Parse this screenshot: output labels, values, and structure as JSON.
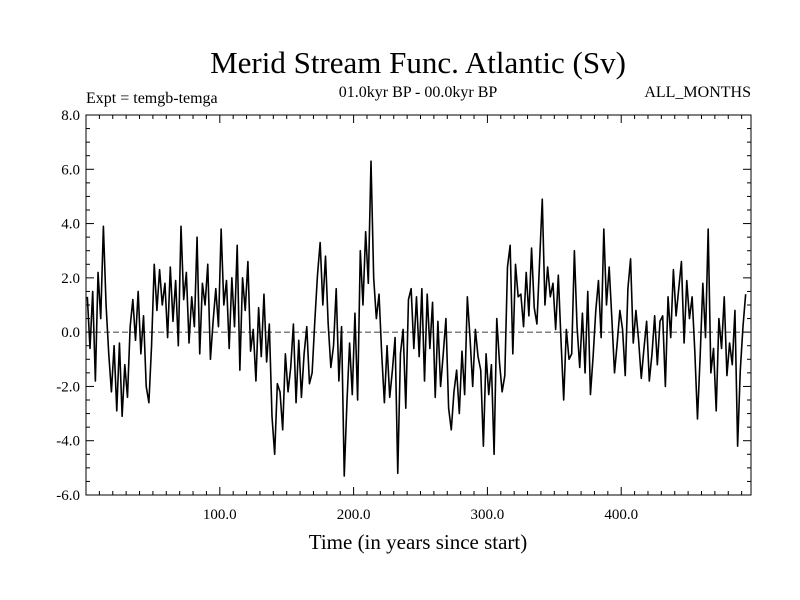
{
  "chart_data": {
    "type": "line",
    "title": "Merid Stream Func. Atlantic (Sv)",
    "subtitle": "01.0kyr BP - 00.0kyr BP",
    "left_label": "Expt = temgb-temga",
    "right_label": "ALL_MONTHS",
    "xlabel": "Time (in years since start)",
    "ylabel": "",
    "xlim": [
      0,
      497
    ],
    "ylim": [
      -6.0,
      8.0
    ],
    "xticks": [
      100,
      200,
      300,
      400
    ],
    "xtick_labels": [
      "100.0",
      "200.0",
      "300.0",
      "400.0"
    ],
    "yticks": [
      -6,
      -4,
      -2,
      0,
      2,
      4,
      6,
      8
    ],
    "ytick_labels": [
      "-6.0",
      "-4.0",
      "-2.0",
      "0.0",
      "2.0",
      "4.0",
      "6.0",
      "8.0"
    ],
    "zero_line": 0.0,
    "series": [
      {
        "name": "Merid Stream Func. Atlantic",
        "x_start": 1,
        "x_step": 2,
        "values": [
          1.3,
          -0.6,
          1.5,
          -1.8,
          2.2,
          0.5,
          3.9,
          1.0,
          -0.8,
          -2.2,
          -0.5,
          -2.9,
          -0.4,
          -3.1,
          -1.2,
          -2.4,
          0.2,
          1.2,
          -0.3,
          1.5,
          -0.8,
          0.6,
          -2.0,
          -2.6,
          -0.5,
          2.5,
          0.8,
          2.3,
          1.0,
          1.8,
          -0.2,
          2.4,
          0.4,
          1.9,
          -0.5,
          3.9,
          1.2,
          2.2,
          -0.4,
          1.3,
          0.2,
          3.5,
          -0.8,
          1.8,
          1.0,
          2.5,
          -1.0,
          0.4,
          1.6,
          0.2,
          3.8,
          1.0,
          1.9,
          -0.6,
          2.0,
          0.2,
          3.2,
          -1.4,
          2.0,
          0.8,
          2.6,
          -0.7,
          0.1,
          -1.8,
          0.9,
          -0.9,
          1.4,
          -1.1,
          0.3,
          -3.1,
          -4.5,
          -1.9,
          -2.2,
          -3.6,
          -0.8,
          -2.2,
          -1.3,
          0.3,
          -2.6,
          -0.3,
          -2.4,
          -0.8,
          0.2,
          -1.9,
          -1.5,
          0.4,
          2.1,
          3.3,
          1.0,
          2.8,
          0.3,
          -1.3,
          -0.5,
          1.6,
          -1.8,
          0.2,
          -5.3,
          -2.6,
          -0.4,
          -2.3,
          0.7,
          -2.5,
          3.0,
          1.0,
          3.7,
          1.8,
          6.3,
          2.0,
          0.5,
          1.4,
          -0.8,
          -2.6,
          -0.5,
          -2.4,
          -1.4,
          -0.2,
          -5.2,
          -0.8,
          0.1,
          -2.8,
          1.2,
          1.6,
          -0.6,
          1.3,
          -0.9,
          1.6,
          -1.8,
          1.4,
          -0.6,
          1.1,
          -2.4,
          0.4,
          -2.0,
          -0.8,
          0.5,
          -2.8,
          -3.6,
          -2.2,
          -1.4,
          -3.0,
          -0.7,
          -2.3,
          1.3,
          -0.2,
          -2.0,
          0.1,
          -0.9,
          -1.4,
          -4.2,
          -0.8,
          -2.3,
          -1.2,
          -4.5,
          0.5,
          -1.1,
          -2.2,
          -1.6,
          2.4,
          3.2,
          -0.8,
          2.5,
          1.3,
          1.4,
          0.2,
          2.2,
          0.6,
          3.1,
          0.9,
          0.3,
          2.6,
          4.9,
          1.0,
          2.4,
          1.3,
          1.8,
          0.1,
          2.1,
          -0.3,
          -2.5,
          0.1,
          -1.0,
          -0.8,
          3.0,
          0.2,
          -1.3,
          0.7,
          -1.5,
          1.5,
          -2.3,
          -0.9,
          0.8,
          1.9,
          -0.2,
          3.8,
          1.0,
          2.4,
          0.5,
          -1.5,
          -0.4,
          0.8,
          0.1,
          -1.6,
          1.6,
          2.7,
          -0.4,
          0.8,
          -0.3,
          -1.7,
          -0.6,
          0.4,
          -1.8,
          -0.8,
          0.6,
          -1.2,
          0.4,
          0.6,
          -2.0,
          1.3,
          -0.2,
          2.3,
          0.6,
          1.6,
          2.6,
          -0.4,
          1.9,
          0.5,
          1.3,
          -0.7,
          -3.2,
          -0.9,
          1.8,
          -0.2,
          3.8,
          -1.5,
          -0.6,
          -2.9,
          0.5,
          -0.6,
          1.3,
          -1.6,
          -0.4,
          -1.2,
          0.8,
          -4.2,
          -1.4,
          0.2,
          1.4
        ]
      }
    ]
  }
}
